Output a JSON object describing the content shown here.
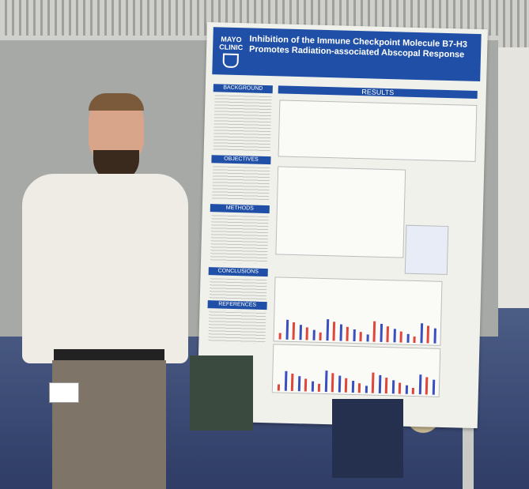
{
  "poster": {
    "logo": "MAYO CLINIC",
    "title_line1": "Inhibition of the Immune Checkpoint Molecule B7-H3",
    "title_line2": "Promotes Radiation-associated Abscopal Response",
    "sections": [
      "BACKGROUND",
      "OBJECTIVES",
      "METHODS",
      "CONCLUSIONS",
      "REFERENCES"
    ],
    "results_label": "RESULTS"
  },
  "colors": {
    "poster_blue": "#1f4fa6",
    "bar_red": "#e0463c",
    "bar_blue": "#3a4fc0"
  }
}
